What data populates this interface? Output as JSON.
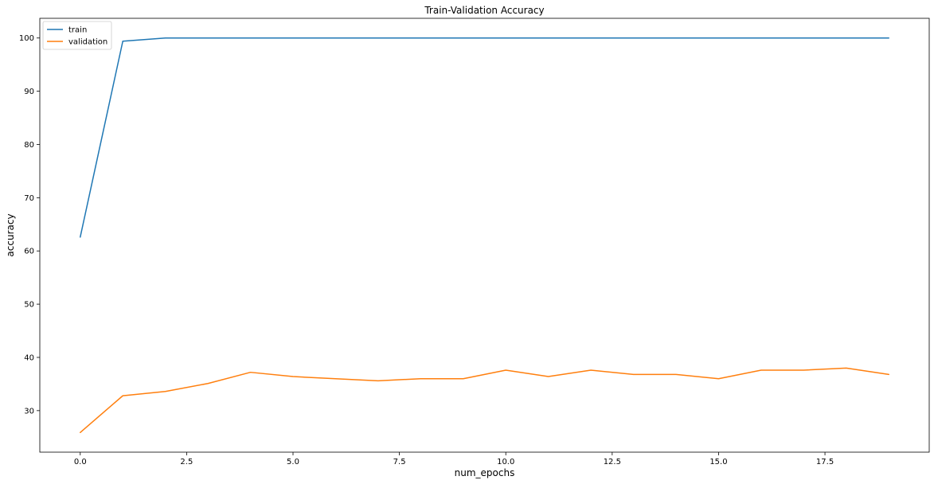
{
  "chart_data": {
    "type": "line",
    "title": "Train-Validation Accuracy",
    "xlabel": "num_epochs",
    "ylabel": "accuracy",
    "x": [
      0,
      1,
      2,
      3,
      4,
      5,
      6,
      7,
      8,
      9,
      10,
      11,
      12,
      13,
      14,
      15,
      16,
      17,
      18,
      19
    ],
    "series": [
      {
        "name": "train",
        "color": "#1f77b4",
        "values": [
          62.6,
          99.4,
          100,
          100,
          100,
          100,
          100,
          100,
          100,
          100,
          100,
          100,
          100,
          100,
          100,
          100,
          100,
          100,
          100,
          100
        ]
      },
      {
        "name": "validation",
        "color": "#ff7f0e",
        "values": [
          25.9,
          32.8,
          33.6,
          35.1,
          37.2,
          36.4,
          36.0,
          35.6,
          36.0,
          36.0,
          37.6,
          36.4,
          37.6,
          36.8,
          36.8,
          36.0,
          37.6,
          37.6,
          38.0,
          36.8
        ]
      }
    ],
    "xlim": [
      -0.95,
      19.95
    ],
    "ylim": [
      22.2,
      103.7
    ],
    "xticks": [
      0.0,
      2.5,
      5.0,
      7.5,
      10.0,
      12.5,
      15.0,
      17.5
    ],
    "xtick_labels": [
      "0.0",
      "2.5",
      "5.0",
      "7.5",
      "10.0",
      "12.5",
      "15.0",
      "17.5"
    ],
    "yticks": [
      30,
      40,
      50,
      60,
      70,
      80,
      90,
      100
    ],
    "ytick_labels": [
      "30",
      "40",
      "50",
      "60",
      "70",
      "80",
      "90",
      "100"
    ],
    "grid": false,
    "legend_position": "upper-left"
  }
}
